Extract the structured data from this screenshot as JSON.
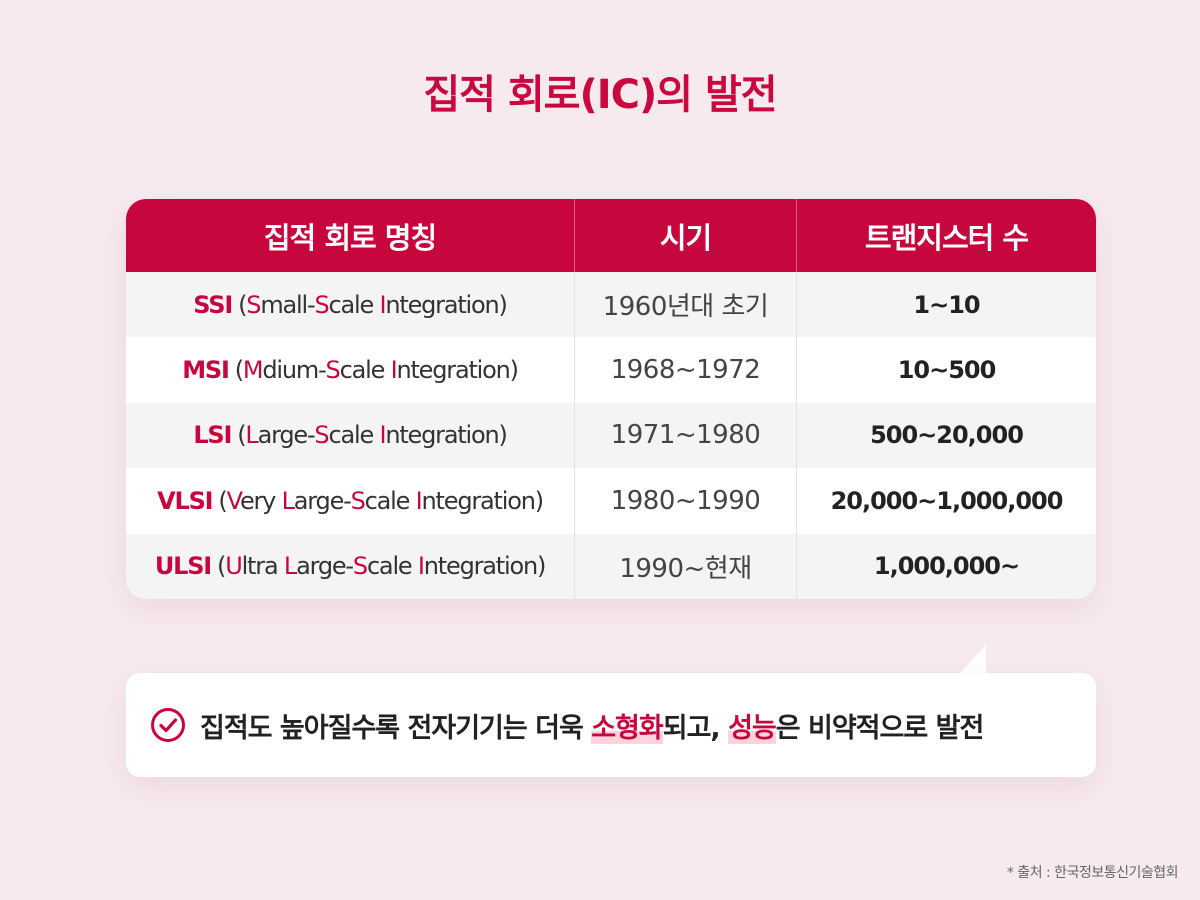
{
  "title": "집적 회로(IC)의 발전",
  "table": {
    "headers": [
      "집적 회로 명칭",
      "시기",
      "트랜지스터 수"
    ],
    "rows": [
      {
        "abbr": "SSI",
        "name_parts": [
          "(",
          "S",
          "mall-",
          "S",
          "cale ",
          "I",
          "ntegration)"
        ],
        "period": "1960년대 초기",
        "transistors": "1~10"
      },
      {
        "abbr": "MSI",
        "name_parts": [
          "(",
          "M",
          "dium-",
          "S",
          "cale ",
          "I",
          "ntegration)"
        ],
        "period": "1968~1972",
        "transistors": "10~500"
      },
      {
        "abbr": "LSI",
        "name_parts": [
          "(",
          "L",
          "arge-",
          "S",
          "cale ",
          "I",
          "ntegration)"
        ],
        "period": "1971~1980",
        "transistors": "500~20,000"
      },
      {
        "abbr": "VLSI",
        "name_parts": [
          "(",
          "V",
          "ery ",
          "L",
          "arge-",
          "S",
          "cale ",
          "I",
          "ntegration)"
        ],
        "period": "1980~1990",
        "transistors": "20,000~1,000,000"
      },
      {
        "abbr": "ULSI",
        "name_parts": [
          "(",
          "U",
          "ltra ",
          "L",
          "arge-",
          "S",
          "cale ",
          "I",
          "ntegration)"
        ],
        "period": "1990~현재",
        "transistors": "1,000,000~"
      }
    ]
  },
  "note": {
    "icon": "check-circle-icon",
    "parts": [
      "집적도 높아질수록 전자기기는 더욱 ",
      "소형화",
      "되고, ",
      "성능",
      "은 비약적으로 발전"
    ]
  },
  "source": "* 출처 : 한국정보통신기술협회",
  "colors": {
    "accent": "#c8063e",
    "background": "#f7eaee",
    "highlight": "#fbd4de"
  }
}
